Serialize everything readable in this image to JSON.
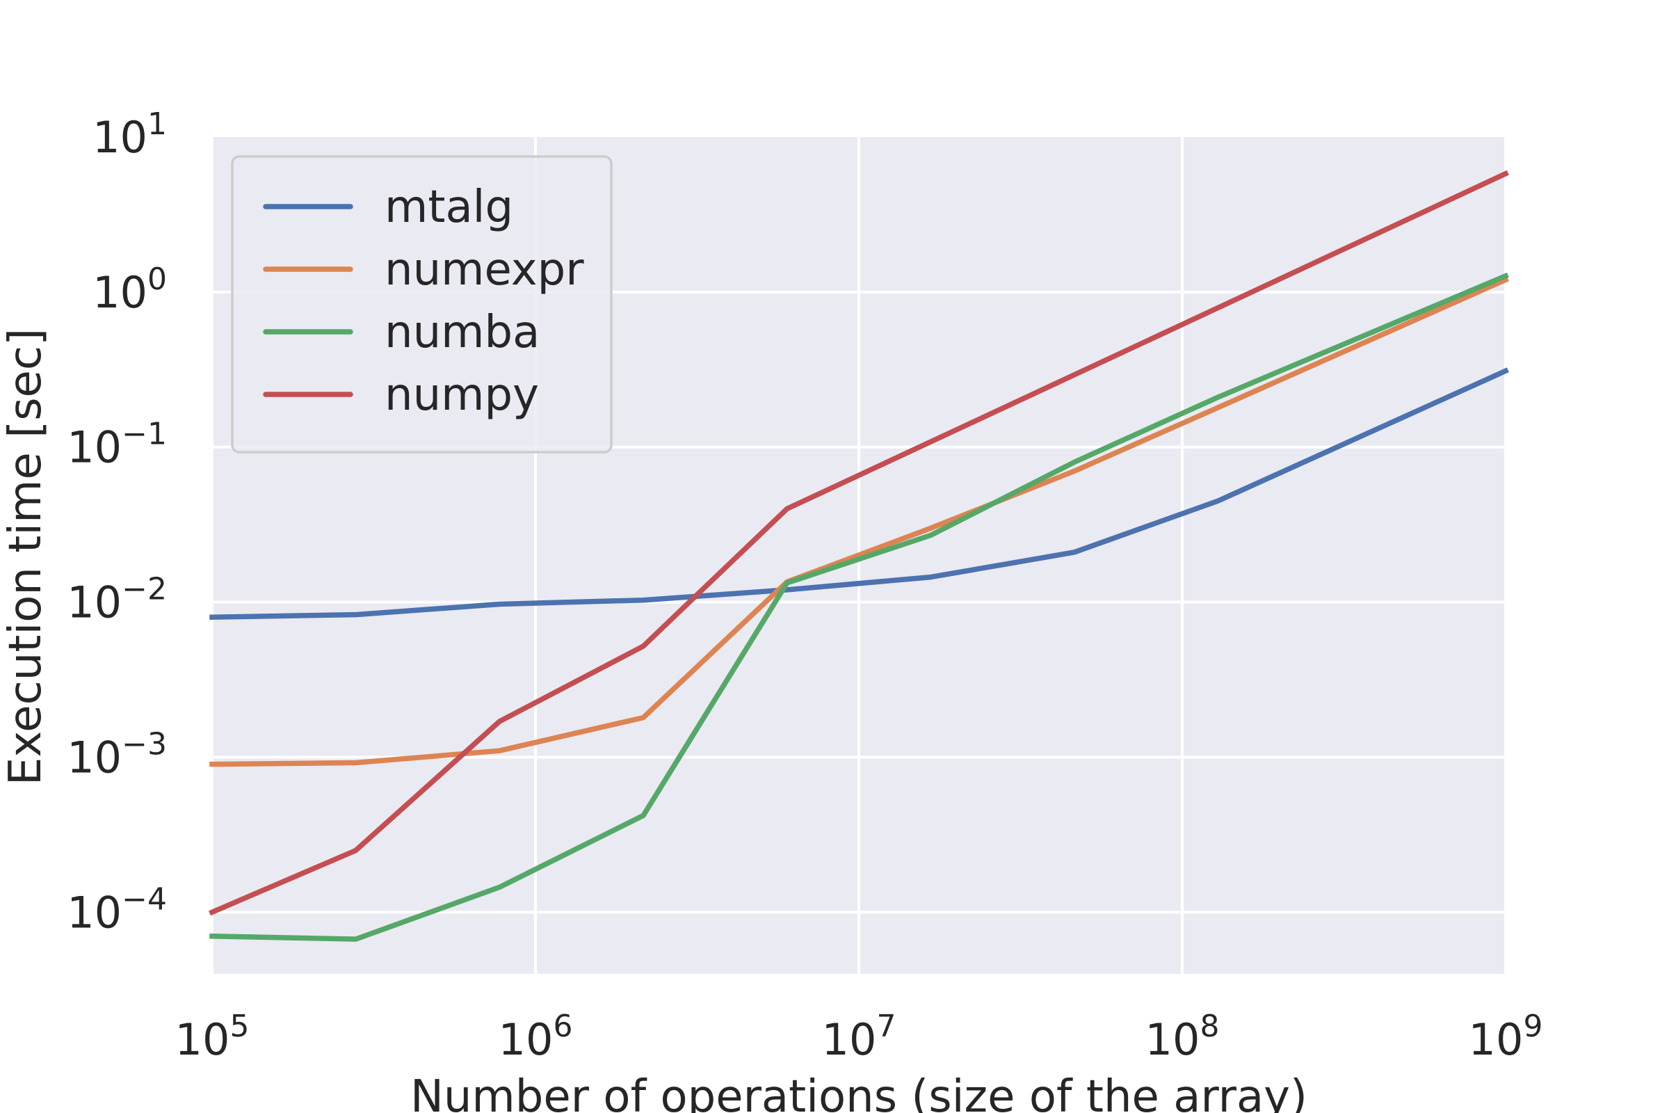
{
  "chart_data": {
    "type": "line",
    "title": "",
    "xlabel": "Number of operations (size of the array)",
    "ylabel": "Execution time [sec]",
    "xscale": "log",
    "yscale": "log",
    "xlim": [
      100000,
      1000000000
    ],
    "ylim": [
      4e-05,
      10
    ],
    "grid": true,
    "legend_position": "top-left",
    "x_ticks": [
      {
        "base": "10",
        "exp": "5",
        "value": 100000
      },
      {
        "base": "10",
        "exp": "6",
        "value": 1000000
      },
      {
        "base": "10",
        "exp": "7",
        "value": 10000000
      },
      {
        "base": "10",
        "exp": "8",
        "value": 100000000
      },
      {
        "base": "10",
        "exp": "9",
        "value": 1000000000
      }
    ],
    "y_ticks": [
      {
        "base": "10",
        "exp": "1",
        "value": 10
      },
      {
        "base": "10",
        "exp": "0",
        "value": 1
      },
      {
        "base": "10",
        "exp": "−1",
        "value": 0.1
      },
      {
        "base": "10",
        "exp": "−2",
        "value": 0.01
      },
      {
        "base": "10",
        "exp": "−3",
        "value": 0.001
      },
      {
        "base": "10",
        "exp": "−4",
        "value": 0.0001
      }
    ],
    "x": [
      100000,
      278000,
      774000,
      2154000,
      5995000,
      16681000,
      46416000,
      129155000,
      1000000000
    ],
    "series": [
      {
        "name": "mtalg",
        "color": "#4c72b0",
        "x": [
          100000,
          278000,
          774000,
          2154000,
          5995000,
          16681000,
          46416000,
          129155000,
          1000000000
        ],
        "values": [
          0.008,
          0.0083,
          0.0097,
          0.0103,
          0.012,
          0.0145,
          0.021,
          0.045,
          0.31
        ]
      },
      {
        "name": "numexpr",
        "color": "#dd8452",
        "x": [
          100000,
          278000,
          774000,
          2154000,
          5995000,
          16681000,
          46416000,
          129155000,
          1000000000
        ],
        "values": [
          0.0009,
          0.00092,
          0.0011,
          0.0018,
          0.0135,
          0.03,
          0.07,
          0.18,
          1.2
        ]
      },
      {
        "name": "numba",
        "color": "#55a868",
        "x": [
          100000,
          278000,
          774000,
          2154000,
          5995000,
          16681000,
          46416000,
          129155000,
          1000000000
        ],
        "values": [
          7e-05,
          6.7e-05,
          0.000145,
          0.00042,
          0.0133,
          0.027,
          0.08,
          0.21,
          1.27
        ]
      },
      {
        "name": "numpy",
        "color": "#c44e52",
        "x": [
          100000,
          278000,
          1000000000
        ],
        "values": [
          0.0001,
          0.00025,
          5.8
        ],
        "x_mid": [
          774000,
          2154000,
          5995000
        ],
        "values_mid": [
          0.0017,
          0.0052,
          0.04
        ]
      }
    ]
  }
}
